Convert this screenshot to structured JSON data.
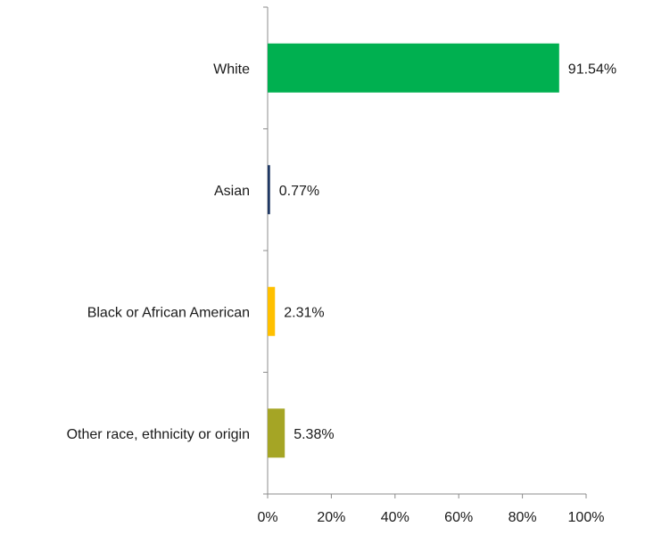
{
  "chart_data": {
    "type": "bar",
    "orientation": "horizontal",
    "title": "",
    "xlabel": "",
    "ylabel": "",
    "categories": [
      "White",
      "Asian",
      "Black or African American",
      "Other race, ethnicity or origin"
    ],
    "values": [
      91.54,
      0.77,
      2.31,
      5.38
    ],
    "value_labels": [
      "91.54%",
      "0.77%",
      "2.31%",
      "5.38%"
    ],
    "colors": [
      "#00b050",
      "#1f3864",
      "#ffc000",
      "#a5a525"
    ],
    "xlim": [
      0,
      100
    ],
    "x_ticks": [
      0,
      20,
      40,
      60,
      80,
      100
    ],
    "x_tick_labels": [
      "0%",
      "20%",
      "40%",
      "60%",
      "80%",
      "100%"
    ],
    "grid": false,
    "legend": "none"
  }
}
